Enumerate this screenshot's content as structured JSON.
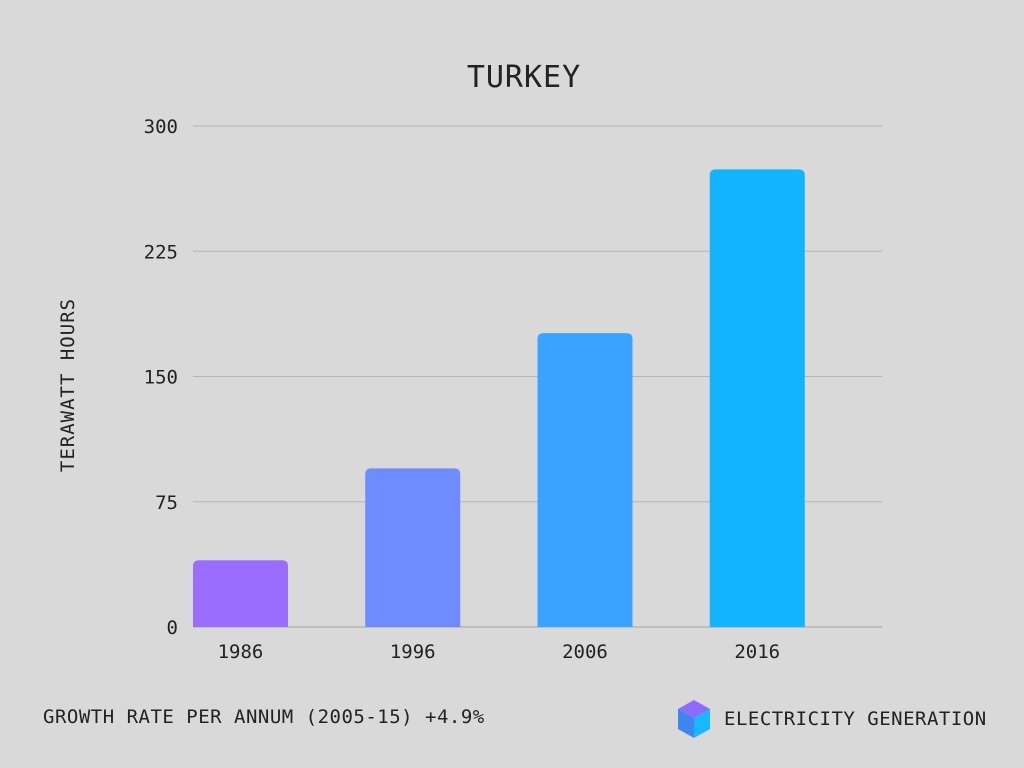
{
  "chart_data": {
    "type": "bar",
    "title": "TURKEY",
    "xlabel": "",
    "ylabel": "TERAWATT HOURS",
    "categories": [
      "1986",
      "1996",
      "2006",
      "2016"
    ],
    "values": [
      40,
      95,
      176,
      274
    ],
    "ylim": [
      0,
      300
    ],
    "yticks": [
      0,
      75,
      150,
      225,
      300
    ],
    "grid": true,
    "legend": "none",
    "bar_colors": [
      "#9b6dff",
      "#6f8cff",
      "#3aa3ff",
      "#12b4ff"
    ]
  },
  "footer": {
    "growth_text": "GROWTH RATE PER ANNUM (2005-15) +4.9%",
    "brand_text": "ELECTRICITY GENERATION",
    "brand_icon": "cube-icon"
  },
  "colors": {
    "background": "#d9d9d9",
    "gridline": "#b5b5b5",
    "text": "#222222",
    "cube_top": "#8b6cff",
    "cube_left": "#3d86f0",
    "cube_right": "#17b8ff"
  }
}
